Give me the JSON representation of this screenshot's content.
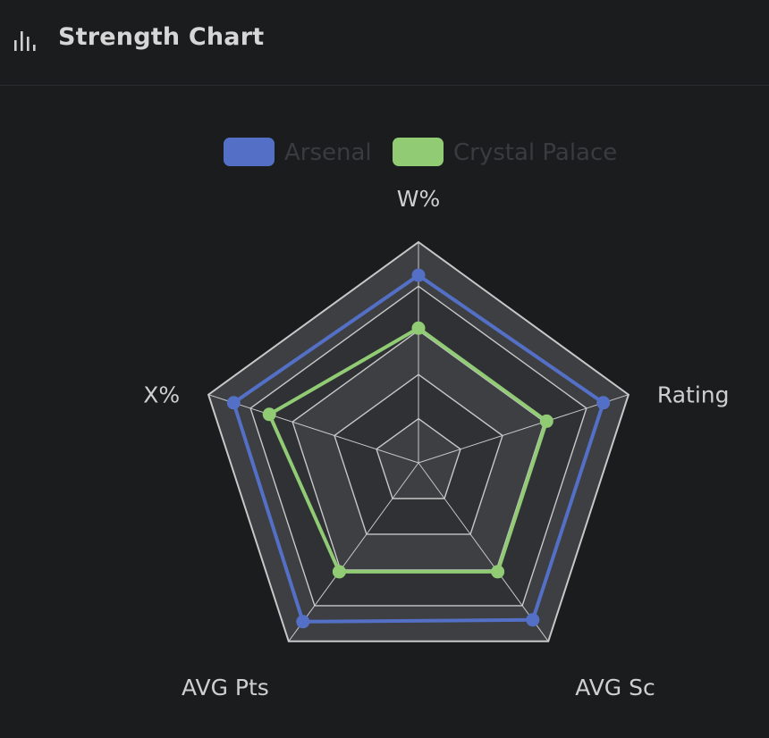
{
  "header": {
    "title": "Strength Chart",
    "icon": "bar-chart-icon"
  },
  "colors": {
    "background": "#1b1c1e",
    "series_arsenal": "#5470c6",
    "series_crystal_palace": "#91cc75",
    "legend_text_inactive": "#3a3b3e",
    "axis_label": "#cfcfcf",
    "grid_line": "#c8c8c8",
    "band_dark": "#2f3134",
    "band_light": "#3d3f43"
  },
  "chart_data": {
    "type": "radar",
    "indicators": [
      "W%",
      "Rating",
      "AVG Sc",
      "AVG Pts",
      "X%"
    ],
    "max": 100,
    "split_number": 5,
    "legend_position": "top",
    "series": [
      {
        "name": "Arsenal",
        "values": [
          85,
          88,
          88,
          89,
          88
        ],
        "color": "#5470c6"
      },
      {
        "name": "Crystal Palace",
        "values": [
          61,
          61,
          61,
          61,
          71
        ],
        "color": "#91cc75"
      }
    ]
  }
}
